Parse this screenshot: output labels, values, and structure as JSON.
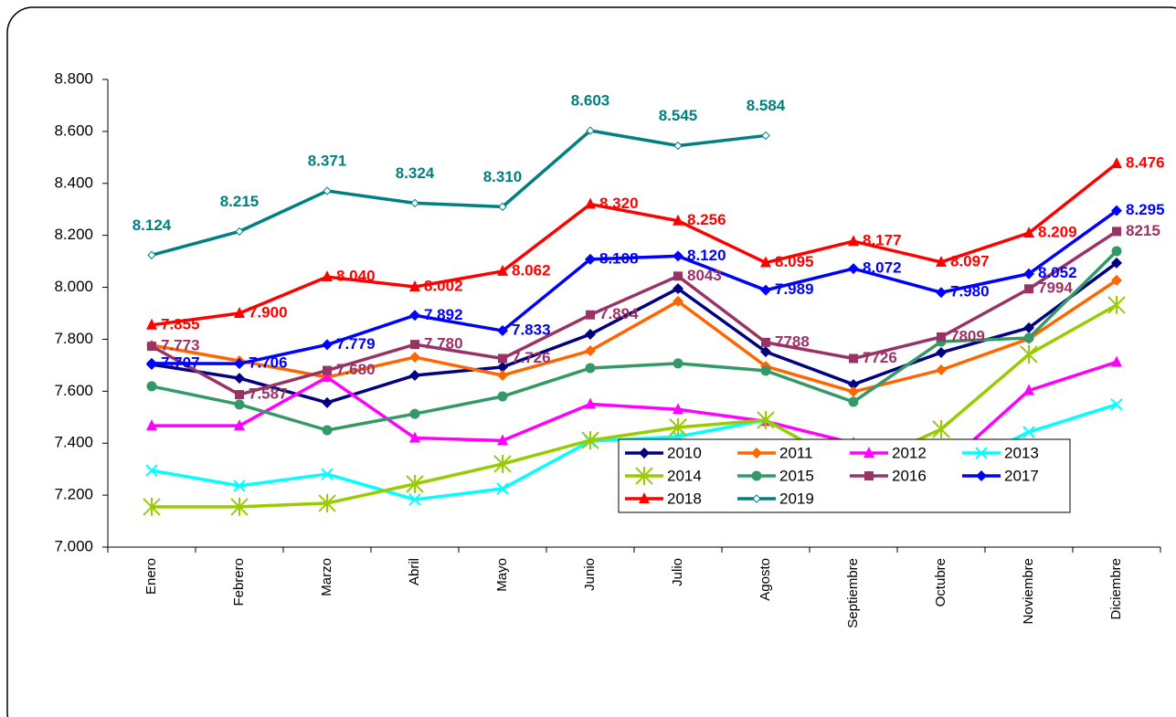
{
  "chart_data": {
    "type": "line",
    "categories": [
      "Enero",
      "Febrero",
      "Marzo",
      "Abril",
      "Mayo",
      "Junio",
      "Julio",
      "Agosto",
      "Septiembre",
      "Octubre",
      "Noviembre",
      "Diciembre"
    ],
    "ylim": [
      7000,
      8800
    ],
    "yticks": [
      {
        "value": 7000,
        "label": "7.000"
      },
      {
        "value": 7200,
        "label": "7.200"
      },
      {
        "value": 7400,
        "label": "7.400"
      },
      {
        "value": 7600,
        "label": "7.600"
      },
      {
        "value": 7800,
        "label": "7.800"
      },
      {
        "value": 8000,
        "label": "8.000"
      },
      {
        "value": 8200,
        "label": "8.200"
      },
      {
        "value": 8400,
        "label": "8.400"
      },
      {
        "value": 8600,
        "label": "8.600"
      },
      {
        "value": 8800,
        "label": "8.800"
      }
    ],
    "grid": false,
    "series": [
      {
        "name": "2010",
        "color": "#000080",
        "marker": "diamond",
        "values": [
          7703,
          7650,
          7556,
          7661,
          7693,
          7819,
          7995,
          7752,
          7626,
          7749,
          7844,
          8094
        ]
      },
      {
        "name": "2011",
        "color": "#ff6600",
        "marker": "diamond",
        "values": [
          7777,
          7717,
          7654,
          7731,
          7661,
          7756,
          7946,
          7696,
          7598,
          7682,
          7802,
          8027
        ]
      },
      {
        "name": "2012",
        "color": "#ff00ff",
        "marker": "triangle",
        "values": [
          7467,
          7467,
          7654,
          7420,
          7410,
          7550,
          7530,
          7484,
          7400,
          7300,
          7603,
          7712
        ]
      },
      {
        "name": "2013",
        "color": "#00ffff",
        "marker": "x",
        "values": [
          7295,
          7236,
          7281,
          7183,
          7225,
          7408,
          7425,
          7489,
          7300,
          7280,
          7443,
          7549
        ]
      },
      {
        "name": "2014",
        "color": "#99cc00",
        "marker": "star",
        "values": [
          7155,
          7155,
          7169,
          7243,
          7320,
          7411,
          7461,
          7489,
          7300,
          7454,
          7742,
          7932
        ]
      },
      {
        "name": "2015",
        "color": "#339966",
        "marker": "circle",
        "values": [
          7619,
          7549,
          7450,
          7513,
          7580,
          7689,
          7707,
          7679,
          7559,
          7791,
          7805,
          8139
        ]
      },
      {
        "name": "2016",
        "color": "#993366",
        "marker": "square",
        "label_position": "right",
        "values": [
          7773,
          7587,
          7680,
          7780,
          7726,
          7894,
          8043,
          7788,
          7726,
          7809,
          7994,
          8215
        ],
        "value_labels": [
          "7.773",
          "7.587",
          "7.680",
          "7.780",
          "7.726",
          "7.894",
          "8043",
          "7788",
          "7726",
          "7809",
          "7994",
          "8215"
        ]
      },
      {
        "name": "2017",
        "color": "#0000ff",
        "marker": "diamond",
        "label_position": "right",
        "values": [
          7707,
          7706,
          7779,
          7892,
          7833,
          8108,
          8120,
          7989,
          8072,
          7980,
          8052,
          8295
        ],
        "value_labels": [
          "7.707",
          "7.706",
          "7.779",
          "7.892",
          "7.833",
          "8.108",
          "8.120",
          "7.989",
          "8.072",
          "7.980",
          "8.052",
          "8.295"
        ]
      },
      {
        "name": "2018",
        "color": "#ff0000",
        "marker": "triangle",
        "label_position": "right",
        "values": [
          7855,
          7900,
          8040,
          8002,
          8062,
          8320,
          8256,
          8095,
          8177,
          8097,
          8209,
          8476
        ],
        "value_labels": [
          "7.855",
          "7.900",
          "8.040",
          "8.002",
          "8.062",
          "8.320",
          "8.256",
          "8.095",
          "8.177",
          "8.097",
          "8.209",
          "8.476"
        ]
      },
      {
        "name": "2019",
        "color": "#008080",
        "marker": "small-diamond",
        "label_position": "above",
        "values": [
          8124,
          8215,
          8371,
          8324,
          8310,
          8603,
          8545,
          8584,
          null,
          null,
          null,
          null
        ],
        "value_labels": [
          "8.124",
          "8.215",
          "8.371",
          "8.324",
          "8.310",
          "8.603",
          "8.545",
          "8.584",
          null,
          null,
          null,
          null
        ]
      }
    ]
  }
}
